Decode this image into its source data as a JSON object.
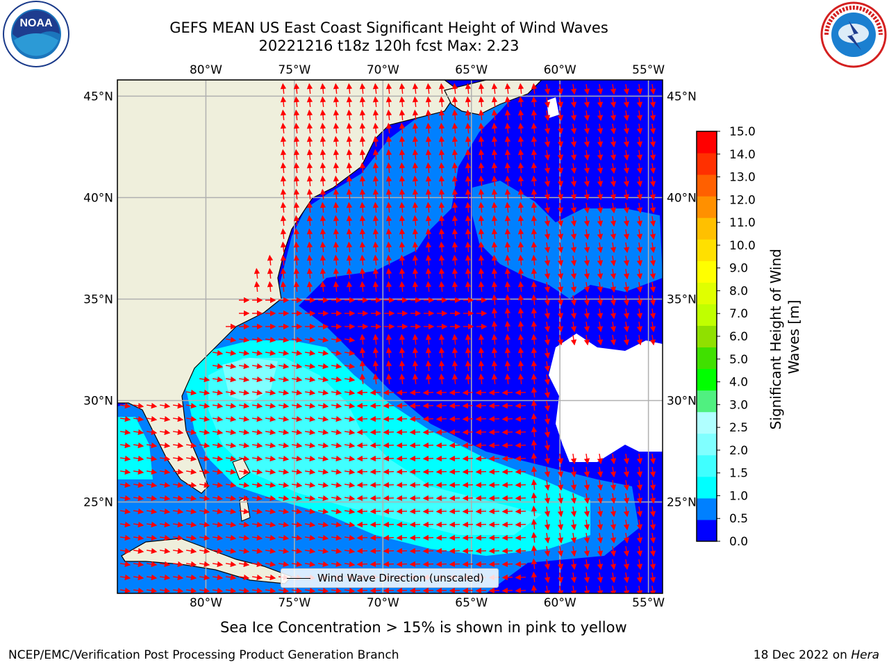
{
  "header": {
    "title_line1": "GEFS MEAN US East Coast Significant Height of Wind Waves",
    "title_line2": "20221216 t18z 120h fcst   Max: 2.23"
  },
  "logos": {
    "left": {
      "text": "NOAA",
      "ring_text": "NATIONAL OCEANIC AND ATMOSPHERIC ADMINISTRATION · U.S. DEPARTMENT OF COMMERCE"
    },
    "right": {
      "ring_text": "NATIONAL WEATHER SERVICE"
    }
  },
  "map": {
    "lon_labels": [
      "80°W",
      "75°W",
      "70°W",
      "65°W",
      "60°W",
      "55°W"
    ],
    "lat_labels": [
      "45°N",
      "40°N",
      "35°N",
      "30°N",
      "25°N"
    ],
    "lon_values": [
      -80,
      -75,
      -70,
      -65,
      -60,
      -55
    ],
    "lat_values": [
      45,
      40,
      35,
      30,
      25
    ],
    "extent": {
      "lon_min": -85,
      "lon_max": -54.2,
      "lat_min": 20.5,
      "lat_max": 45.8
    },
    "colors": {
      "land": "#efefdc",
      "coast": "#000000",
      "grid": "#b0b0b0",
      "arrow": "#ff0000",
      "missing": "#ffffff"
    }
  },
  "colorbar": {
    "title_line1": "Significant Height of Wind",
    "title_line2": "Waves [m]",
    "tick_labels": [
      "0.0",
      "0.5",
      "1.0",
      "1.5",
      "2.0",
      "2.5",
      "3.0",
      "4.0",
      "5.0",
      "6.0",
      "7.0",
      "8.0",
      "9.0",
      "10.0",
      "11.0",
      "12.0",
      "13.0",
      "14.0",
      "15.0"
    ],
    "colors": [
      "#0000ff",
      "#0080ff",
      "#00ffff",
      "#40ffff",
      "#80ffff",
      "#b0ffff",
      "#50f080",
      "#00ff00",
      "#40e000",
      "#90e000",
      "#c0ff00",
      "#e0ff00",
      "#ffff00",
      "#ffe000",
      "#ffc000",
      "#ff9000",
      "#ff6000",
      "#ff3000",
      "#ff0000"
    ]
  },
  "legend": {
    "label": "Wind Wave Direction (unscaled)"
  },
  "footer": {
    "note": "Sea Ice Concentration > 15% is shown in pink to yellow",
    "credit_left": "NCEP/EMC/Verification Post Processing Product Generation Branch",
    "credit_right_prefix": "18 Dec 2022 on ",
    "credit_right_host": "Hera"
  }
}
